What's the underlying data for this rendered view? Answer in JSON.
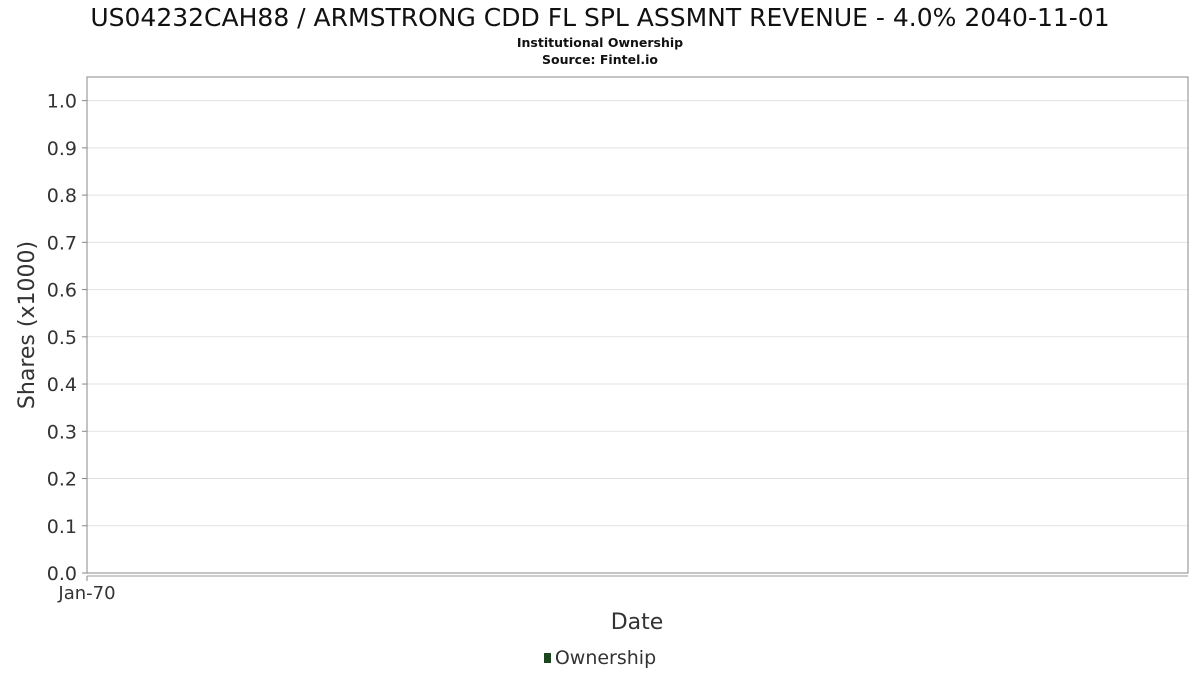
{
  "chart_data": {
    "type": "line",
    "title": "US04232CAH88 / ARMSTRONG CDD FL SPL ASSMNT REVENUE - 4.0% 2040-11-01",
    "subtitle": "Institutional Ownership",
    "source": "Source: Fintel.io",
    "xlabel": "Date",
    "ylabel": "Shares (x1000)",
    "x_tick_labels": [
      "Jan-70"
    ],
    "y_ticks": [
      0.0,
      0.1,
      0.2,
      0.3,
      0.4,
      0.5,
      0.6,
      0.7,
      0.8,
      0.9,
      1.0
    ],
    "ylim": [
      0.0,
      1.05
    ],
    "grid": true,
    "legend_position": "bottom-center",
    "series": [
      {
        "name": "Ownership",
        "color": "#1c4620",
        "values": []
      }
    ]
  }
}
